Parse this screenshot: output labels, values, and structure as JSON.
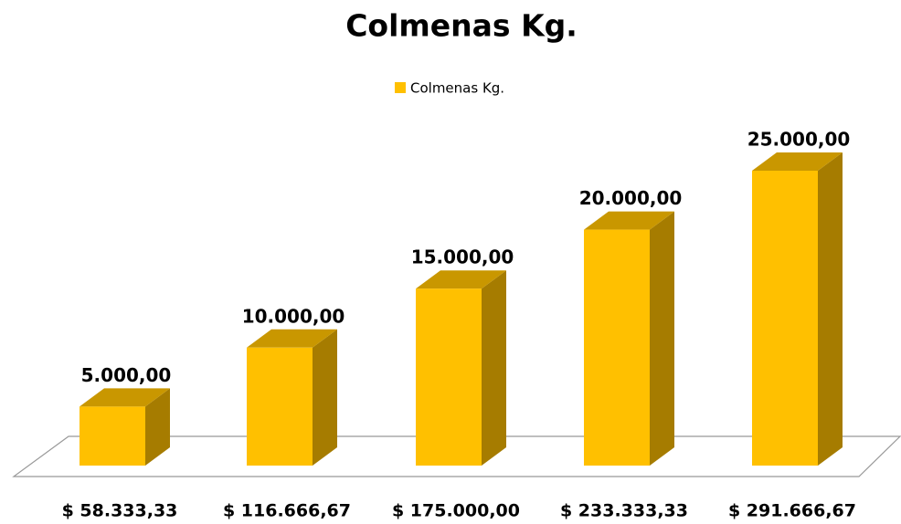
{
  "chart_data": {
    "type": "bar3d",
    "title": "Colmenas Kg.",
    "categories": [
      "$ 58.333,33",
      "$ 116.666,67",
      "$ 175.000,00",
      "$ 233.333,33",
      "$ 291.666,67"
    ],
    "series": [
      {
        "name": "Colmenas Kg.",
        "color": "#FFC000",
        "values": [
          5000,
          10000,
          15000,
          20000,
          25000
        ],
        "value_labels": [
          "5.000,00",
          "10.000,00",
          "15.000,00",
          "20.000,00",
          "25.000,00"
        ]
      }
    ],
    "legend": "top"
  }
}
